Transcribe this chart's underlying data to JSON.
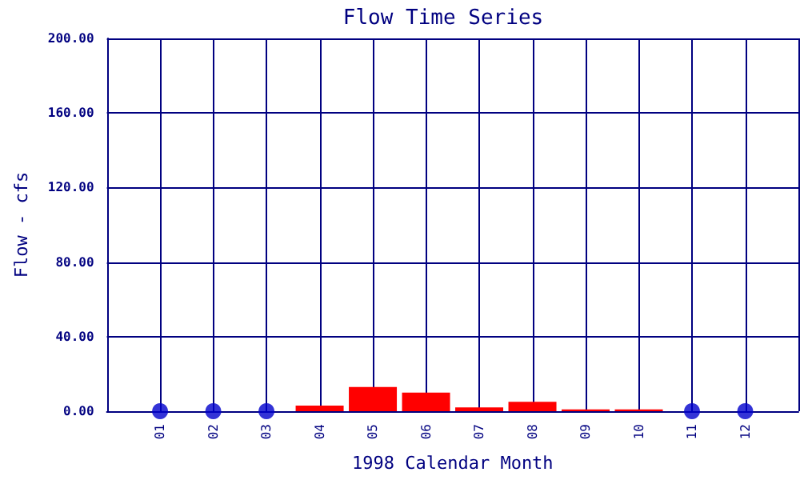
{
  "chart_data": {
    "type": "bar",
    "title": "Flow Time Series",
    "xlabel": "1998 Calendar Month",
    "ylabel": "Flow - cfs",
    "categories": [
      "01",
      "02",
      "03",
      "04",
      "05",
      "06",
      "07",
      "08",
      "09",
      "10",
      "11",
      "12"
    ],
    "series": [
      {
        "color": "#ff0000",
        "values": [
          null,
          null,
          null,
          3,
          13,
          10,
          2,
          5,
          1,
          1,
          null,
          null
        ]
      },
      {
        "type": "scatter",
        "color": "#0000cc",
        "values": [
          0,
          0,
          0,
          null,
          null,
          null,
          null,
          null,
          null,
          null,
          0,
          0
        ]
      }
    ],
    "ylim": [
      0,
      200
    ],
    "yticks": [
      {
        "value": 0,
        "label": "0.00"
      },
      {
        "value": 40,
        "label": "40.00"
      },
      {
        "value": 80,
        "label": "80.00"
      },
      {
        "value": 120,
        "label": "120.00"
      },
      {
        "value": 160,
        "label": "160.00"
      },
      {
        "value": 200,
        "label": "200.00"
      }
    ],
    "grid": true,
    "marker": "circle"
  }
}
